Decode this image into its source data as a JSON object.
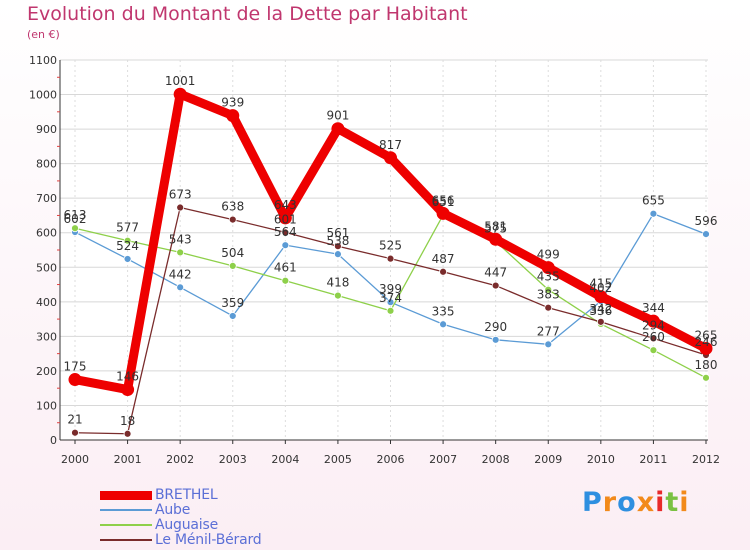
{
  "title": "Evolution du Montant de la Dette par Habitant",
  "subtitle": "(en €)",
  "logo_text": "Proxiti",
  "chart_data": {
    "type": "line",
    "title": "Evolution du Montant de la Dette par Habitant",
    "subtitle": "(en €)",
    "xlabel": "",
    "ylabel": "",
    "x": [
      "2000",
      "2001",
      "2002",
      "2003",
      "2004",
      "2005",
      "2006",
      "2007",
      "2008",
      "2009",
      "2010",
      "2011",
      "2012"
    ],
    "ylim": [
      0,
      1100
    ],
    "yticks": [
      0,
      100,
      200,
      300,
      400,
      500,
      600,
      700,
      800,
      900,
      1000,
      1100
    ],
    "legend_position": "bottom-left",
    "series": [
      {
        "name": "BRETHEL",
        "color": "#ee0000",
        "width": 9,
        "values": [
          175,
          146,
          1001,
          939,
          643,
          901,
          817,
          656,
          581,
          499,
          415,
          344,
          265
        ],
        "labels": [
          "175",
          "146",
          "1001",
          "939",
          "643",
          "901",
          "817",
          "656",
          "581",
          "499",
          "415",
          "344",
          "265"
        ]
      },
      {
        "name": "Aube",
        "color": "#5b9bd5",
        "width": 1.3,
        "values": [
          602,
          524,
          442,
          359,
          564,
          538,
          399,
          335,
          290,
          277,
          402,
          655,
          596
        ],
        "labels": [
          "602",
          "524",
          "442",
          "359",
          "564",
          "538",
          "399",
          "335",
          "290",
          "277",
          "402",
          "655",
          "596"
        ]
      },
      {
        "name": "Auguaise",
        "color": "#8ed04a",
        "width": 1.3,
        "values": [
          613,
          577,
          543,
          504,
          461,
          418,
          374,
          651,
          575,
          435,
          336,
          260,
          180
        ],
        "labels": [
          "613",
          "577",
          "543",
          "504",
          "461",
          "418",
          "374",
          "651",
          "575",
          "435",
          "336",
          "260",
          "180"
        ]
      },
      {
        "name": "Le Ménil-Bérard",
        "color": "#7a2c2c",
        "width": 1.3,
        "values": [
          21,
          18,
          673,
          638,
          601,
          561,
          525,
          487,
          447,
          383,
          342,
          294,
          246
        ],
        "labels": [
          "21",
          "18",
          "673",
          "638",
          "601",
          "561",
          "525",
          "487",
          "447",
          "383",
          "342",
          "294",
          "246"
        ]
      }
    ]
  }
}
